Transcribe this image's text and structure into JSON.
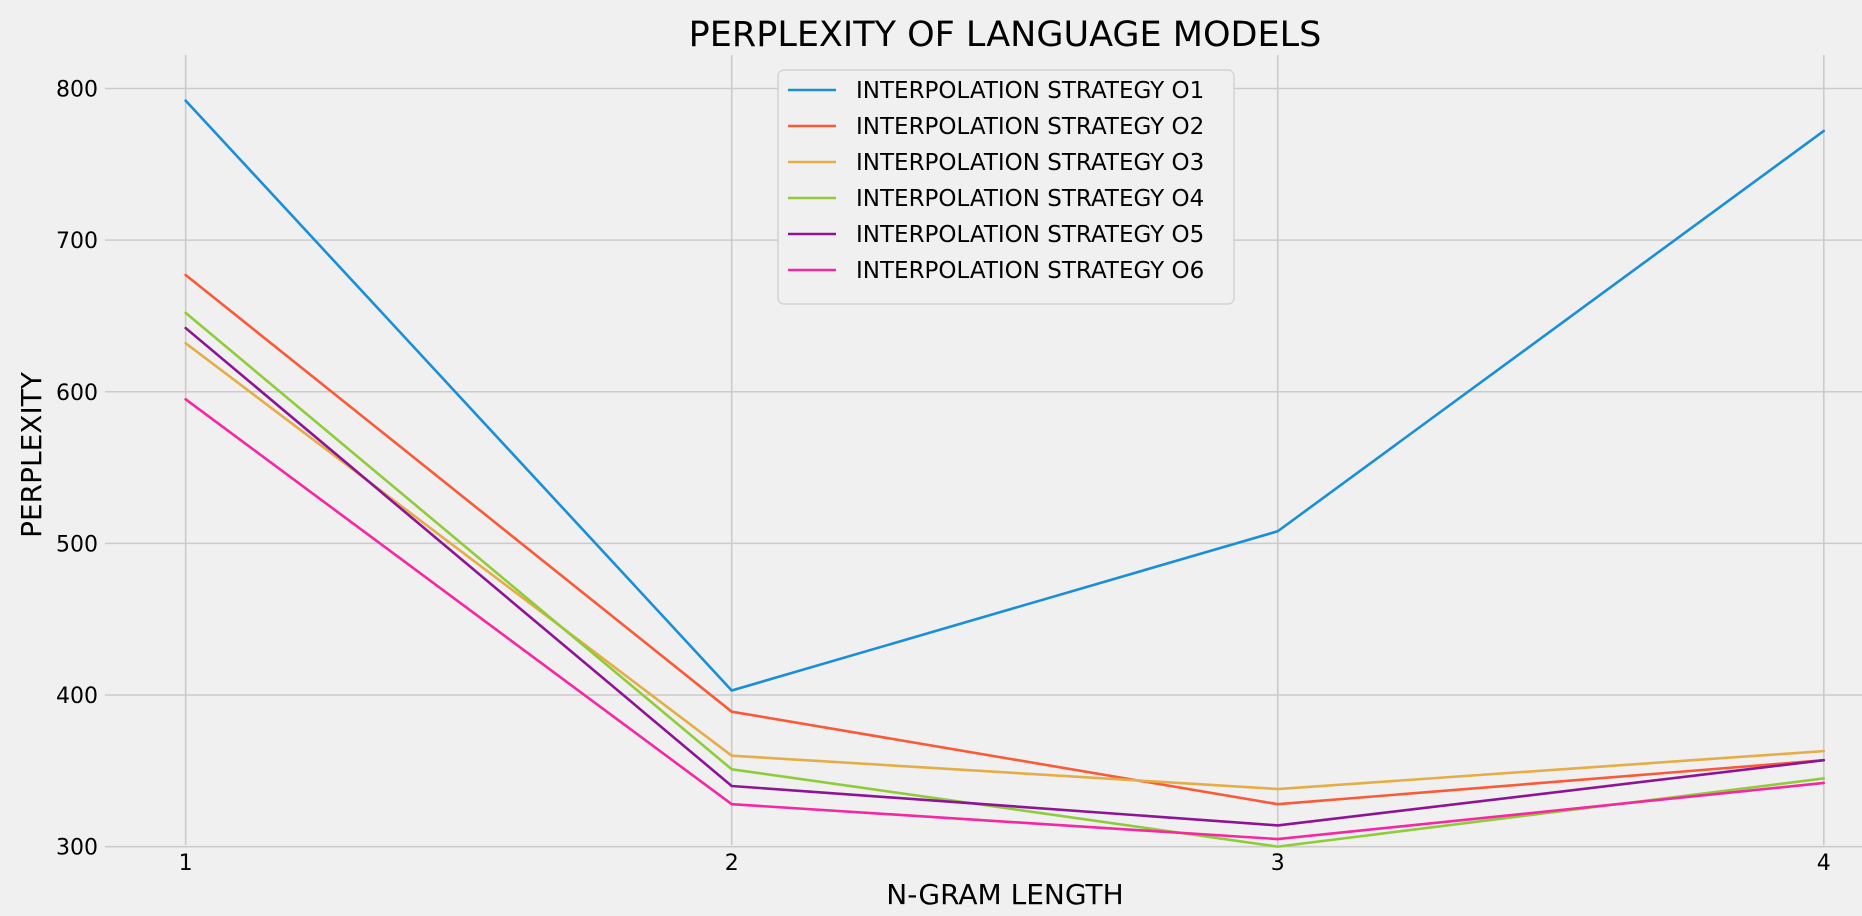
{
  "chart_data": {
    "type": "line",
    "title": "PERPLEXITY OF LANGUAGE MODELS",
    "xlabel": "N-GRAM LENGTH",
    "ylabel": "PERPLEXITY",
    "x": [
      1,
      2,
      3,
      4
    ],
    "xticks": [
      "1",
      "2",
      "3",
      "4"
    ],
    "yticks": [
      "300",
      "400",
      "500",
      "600",
      "700",
      "800"
    ],
    "xlim": [
      0.66,
      4.07
    ],
    "ylim": [
      278,
      830
    ],
    "grid": true,
    "legend_position": "top-center",
    "series": [
      {
        "name": "INTERPOLATION STRATEGY O1",
        "color": "#1a8fd8",
        "values": [
          792,
          403,
          508,
          772
        ]
      },
      {
        "name": "INTERPOLATION STRATEGY O2",
        "color": "#fb5a39",
        "values": [
          677,
          389,
          328,
          357
        ]
      },
      {
        "name": "INTERPOLATION STRATEGY O3",
        "color": "#e5ad46",
        "values": [
          632,
          360,
          338,
          363
        ]
      },
      {
        "name": "INTERPOLATION STRATEGY O4",
        "color": "#8fcc3a",
        "values": [
          652,
          351,
          300,
          345
        ]
      },
      {
        "name": "INTERPOLATION STRATEGY O5",
        "color": "#8e1495",
        "values": [
          642,
          340,
          314,
          357
        ]
      },
      {
        "name": "INTERPOLATION STRATEGY O6",
        "color": "#f627a0",
        "values": [
          595,
          328,
          305,
          342
        ]
      }
    ]
  }
}
